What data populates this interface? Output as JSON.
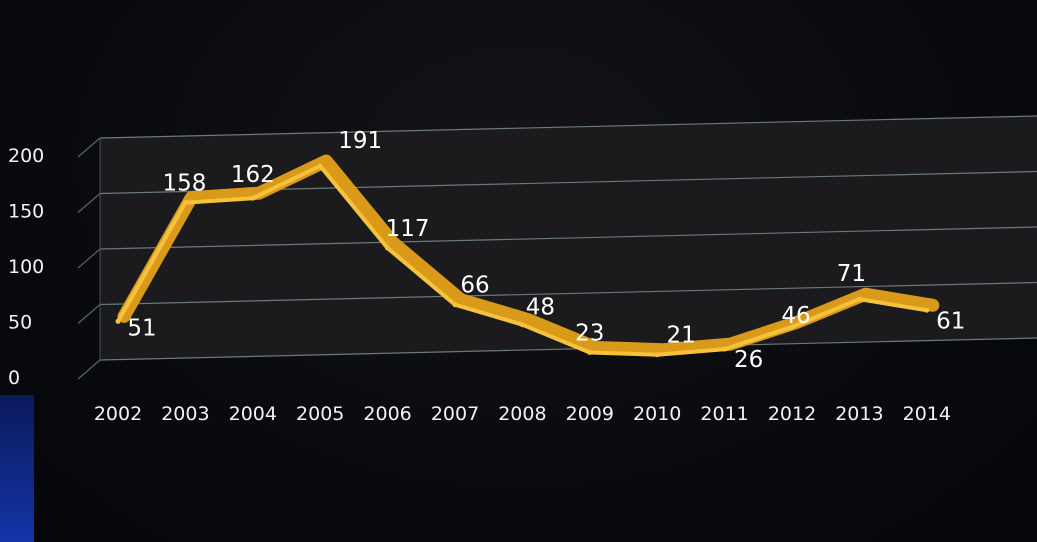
{
  "chart_data": {
    "type": "line",
    "title": "",
    "xlabel": "",
    "ylabel": "",
    "ylim": [
      0,
      200
    ],
    "yticks": [
      0,
      50,
      100,
      150,
      200
    ],
    "grid": true,
    "categories": [
      "2002",
      "2003",
      "2004",
      "2005",
      "2006",
      "2007",
      "2008",
      "2009",
      "2010",
      "2011",
      "2012",
      "2013",
      "2014"
    ],
    "series": [
      {
        "values": [
          51,
          158,
          162,
          191,
          117,
          66,
          48,
          23,
          21,
          26,
          46,
          71,
          61
        ]
      }
    ],
    "line_color": "#d99a1a",
    "line_highlight": "#f6c23c"
  }
}
